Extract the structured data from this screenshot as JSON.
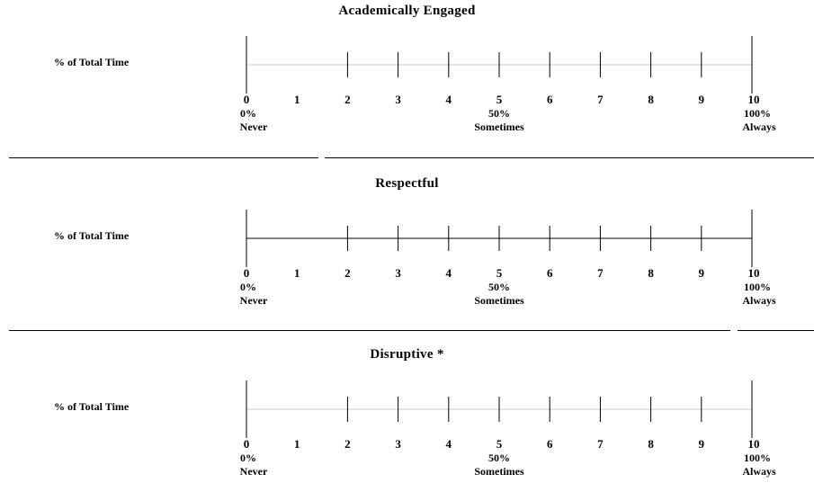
{
  "sections": [
    {
      "title": "Academically Engaged",
      "row_label": "% of Total Time",
      "scale_numbers": [
        "0",
        "1",
        "2",
        "3",
        "4",
        "5",
        "6",
        "7",
        "8",
        "9",
        "10"
      ],
      "anchor_percents": [
        "0%",
        "50%",
        "100%"
      ],
      "anchor_words": [
        "Never",
        "Sometimes",
        "Always"
      ],
      "baseline_style": "light"
    },
    {
      "title": "Respectful",
      "row_label": "% of Total Time",
      "scale_numbers": [
        "0",
        "1",
        "2",
        "3",
        "4",
        "5",
        "6",
        "7",
        "8",
        "9",
        "10"
      ],
      "anchor_percents": [
        "0%",
        "50%",
        "100%"
      ],
      "anchor_words": [
        "Never",
        "Sometimes",
        "Always"
      ],
      "baseline_style": "dark"
    },
    {
      "title": "Disruptive *",
      "row_label": "% of Total Time",
      "scale_numbers": [
        "0",
        "1",
        "2",
        "3",
        "4",
        "5",
        "6",
        "7",
        "8",
        "9",
        "10"
      ],
      "anchor_percents": [
        "0%",
        "50%",
        "100%"
      ],
      "anchor_words": [
        "Never",
        "Sometimes",
        "Always"
      ],
      "baseline_style": "light"
    }
  ],
  "colors": {
    "ink": "#000000",
    "light_line": "#c8c8c8",
    "background": "#ffffff"
  }
}
